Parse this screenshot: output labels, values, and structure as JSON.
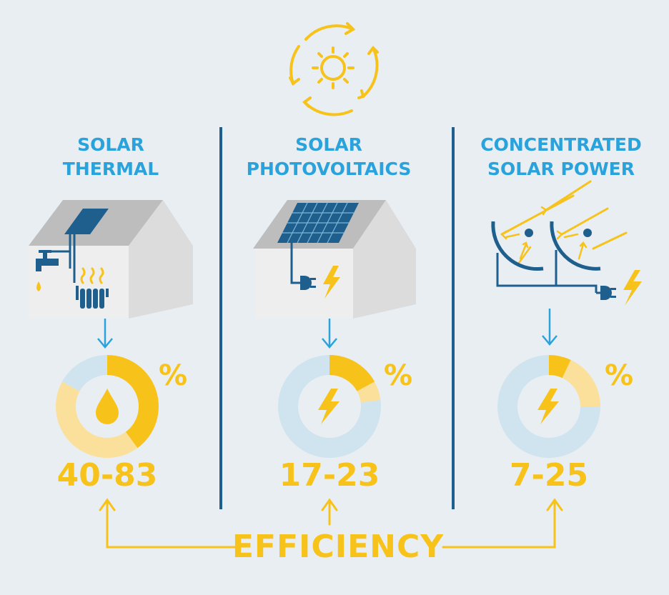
{
  "colors": {
    "background": "#e9eef2",
    "title_blue": "#2aa3dc",
    "dark_blue": "#1e5f8e",
    "yellow": "#f7c31a",
    "light_yellow": "#fbe09c",
    "light_blue": "#cfe4ee",
    "house_front": "#eeeeee",
    "house_side": "#dcdcdc",
    "roof": "#bdbdbd"
  },
  "columns": [
    {
      "title_line1": "SOLAR",
      "title_line2": "THERMAL",
      "percent_symbol": "%",
      "range": "40-83",
      "icon": "water-drop-icon",
      "range_low": 40,
      "range_high": 83
    },
    {
      "title_line1": "SOLAR",
      "title_line2": "PHOTOVOLTAICS",
      "percent_symbol": "%",
      "range": "17-23",
      "icon": "lightning-bolt-icon",
      "range_low": 17,
      "range_high": 23
    },
    {
      "title_line1": "CONCENTRATED",
      "title_line2": "SOLAR POWER",
      "percent_symbol": "%",
      "range": "7-25",
      "icon": "lightning-bolt-icon",
      "range_low": 7,
      "range_high": 25
    }
  ],
  "footer": {
    "label": "EFFICIENCY"
  },
  "top_icon": "sun-cycle-icon"
}
